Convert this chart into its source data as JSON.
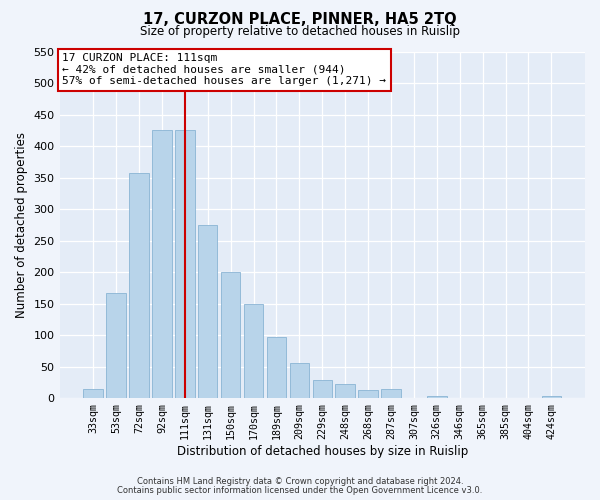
{
  "title": "17, CURZON PLACE, PINNER, HA5 2TQ",
  "subtitle": "Size of property relative to detached houses in Ruislip",
  "xlabel": "Distribution of detached houses by size in Ruislip",
  "ylabel": "Number of detached properties",
  "bar_labels": [
    "33sqm",
    "53sqm",
    "72sqm",
    "92sqm",
    "111sqm",
    "131sqm",
    "150sqm",
    "170sqm",
    "189sqm",
    "209sqm",
    "229sqm",
    "248sqm",
    "268sqm",
    "287sqm",
    "307sqm",
    "326sqm",
    "346sqm",
    "365sqm",
    "385sqm",
    "404sqm",
    "424sqm"
  ],
  "bar_heights": [
    15,
    167,
    357,
    425,
    425,
    275,
    200,
    150,
    97,
    55,
    28,
    22,
    13,
    15,
    0,
    3,
    0,
    0,
    0,
    0,
    3
  ],
  "bar_color": "#b8d4ea",
  "bar_edge_color": "#8ab4d4",
  "vline_x": 4,
  "vline_color": "#cc0000",
  "annotation_title": "17 CURZON PLACE: 111sqm",
  "annotation_line1": "← 42% of detached houses are smaller (944)",
  "annotation_line2": "57% of semi-detached houses are larger (1,271) →",
  "annotation_box_facecolor": "#ffffff",
  "annotation_box_edgecolor": "#cc0000",
  "ylim": [
    0,
    550
  ],
  "yticks": [
    0,
    50,
    100,
    150,
    200,
    250,
    300,
    350,
    400,
    450,
    500,
    550
  ],
  "footer1": "Contains HM Land Registry data © Crown copyright and database right 2024.",
  "footer2": "Contains public sector information licensed under the Open Government Licence v3.0.",
  "bg_color": "#f0f4fb",
  "plot_bg_color": "#e4ecf7"
}
